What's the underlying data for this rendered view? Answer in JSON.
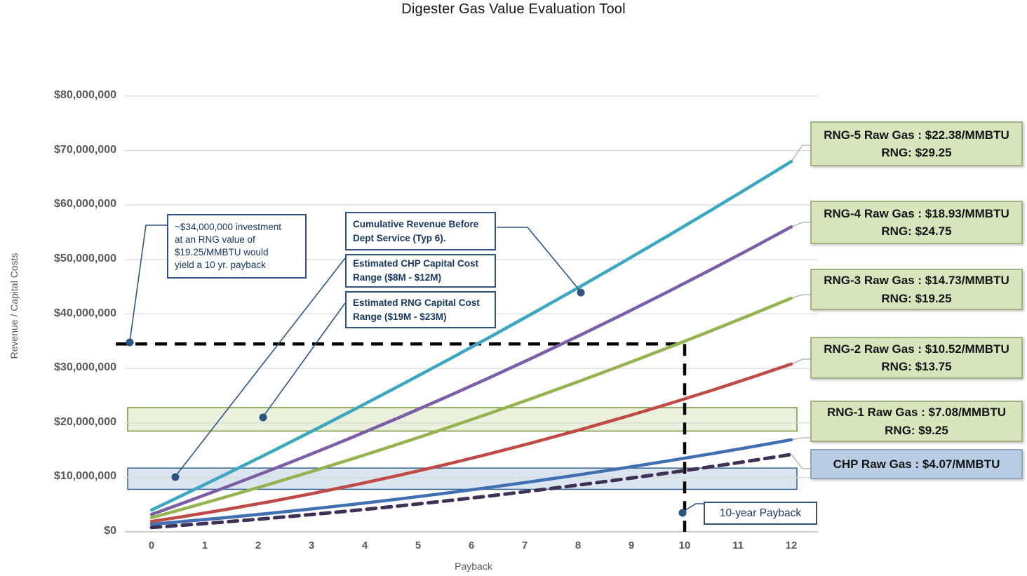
{
  "title": "Digester Gas Value Evaluation Tool",
  "axes": {
    "x": {
      "label": "Payback",
      "tick_labels": [
        "0",
        "1",
        "2",
        "3",
        "4",
        "5",
        "6",
        "7",
        "8",
        "9",
        "10",
        "11",
        "12"
      ]
    },
    "y": {
      "label": "Revenue / Capital Costs",
      "tick_labels": [
        "$0",
        "$10,000,000",
        "$20,000,000",
        "$30,000,000",
        "$40,000,000",
        "$50,000,000",
        "$60,000,000",
        "$70,000,000",
        "$80,000,000"
      ]
    }
  },
  "chart_data": {
    "type": "line",
    "title": "Digester Gas Value Evaluation Tool",
    "xlabel": "Payback",
    "ylabel": "Revenue / Capital Costs",
    "xlim": [
      0,
      12
    ],
    "ylim_musd": [
      0,
      80
    ],
    "grid": true,
    "gridline_color": "#D9D9D9",
    "sample_x": [
      0,
      6,
      12
    ],
    "series": [
      {
        "name": "RNG-5",
        "raw_gas": "$22.38/MMBTU",
        "rng_value": "$29.25",
        "color": "#3CA7C0",
        "style": "solid",
        "values_musd": [
          4.0,
          33.9,
          68.0
        ]
      },
      {
        "name": "RNG-4",
        "raw_gas": "$18.93/MMBTU",
        "rng_value": "$24.75",
        "color": "#7B5EA5",
        "style": "solid",
        "values_musd": [
          3.2,
          26.8,
          56.0
        ]
      },
      {
        "name": "RNG-3",
        "raw_gas": "$14.73/MMBTU",
        "rng_value": "$19.25",
        "color": "#95B350",
        "style": "solid",
        "values_musd": [
          2.6,
          20.6,
          42.9
        ]
      },
      {
        "name": "RNG-2",
        "raw_gas": "$10.52/MMBTU",
        "rng_value": "$13.75",
        "color": "#BE4B45",
        "style": "solid",
        "values_musd": [
          1.9,
          13.5,
          30.8
        ]
      },
      {
        "name": "RNG-1",
        "raw_gas": "$7.08/MMBTU",
        "rng_value": "$9.25",
        "color": "#4170B2",
        "style": "solid",
        "values_musd": [
          1.4,
          7.7,
          16.9
        ]
      },
      {
        "name": "CHP",
        "raw_gas": "$4.07/MMBTU",
        "color": "#3F3155",
        "style": "dashed",
        "values_musd": [
          0.8,
          6.2,
          14.2
        ]
      }
    ],
    "bands": [
      {
        "name": "rng-capital-cost-range",
        "label": "Estimated RNG Capital Cost Range ($19M - $23M)",
        "range_musd": [
          18.5,
          22.8
        ],
        "fill": "#EBF1DD",
        "stroke": "#77933C"
      },
      {
        "name": "chp-capital-cost-range",
        "label": "Estimated CHP Capital Cost Range ($8M - $12M)",
        "range_musd": [
          7.8,
          11.7
        ],
        "fill": "#DAE5F0",
        "stroke": "#376092"
      }
    ],
    "payback_marker": {
      "x": 10,
      "value_musd": 34.5,
      "color": "#000000",
      "style": "dashed"
    }
  },
  "legend_callouts": [
    {
      "id": "rng-5",
      "line1": "RNG-5 Raw Gas : $22.38/MMBTU",
      "line2": "RNG: $29.25",
      "style": "green"
    },
    {
      "id": "rng-4",
      "line1": "RNG-4 Raw Gas : $18.93/MMBTU",
      "line2": "RNG: $24.75",
      "style": "green"
    },
    {
      "id": "rng-3",
      "line1": "RNG-3 Raw Gas : $14.73/MMBTU",
      "line2": "RNG: $19.25",
      "style": "green"
    },
    {
      "id": "rng-2",
      "line1": "RNG-2 Raw Gas : $10.52/MMBTU",
      "line2": "RNG: $13.75",
      "style": "green"
    },
    {
      "id": "rng-1",
      "line1": "RNG-1 Raw Gas : $7.08/MMBTU",
      "line2": "RNG: $9.25",
      "style": "green"
    },
    {
      "id": "chp",
      "line1": "CHP Raw Gas : $4.07/MMBTU",
      "style": "blue"
    }
  ],
  "callouts": {
    "investment": "~$34,000,000 investment\nat an RNG value of\n$19.25/MMBTU would\nyield a 10 yr. payback",
    "cumulative_revenue": "Cumulative Revenue Before Dept Service (Typ 6).",
    "chp_capital": "Estimated CHP Capital Cost Range ($8M - $12M)",
    "rng_capital": "Estimated RNG Capital Cost Range ($19M - $23M)",
    "ten_year_payback": "10-year Payback"
  },
  "colors": {
    "connector": "#2F5580",
    "anchor_dot": "#2C5480",
    "leader": "#ACACAC",
    "axis_text": "#595959",
    "axis_line": "#BFBFBF"
  }
}
